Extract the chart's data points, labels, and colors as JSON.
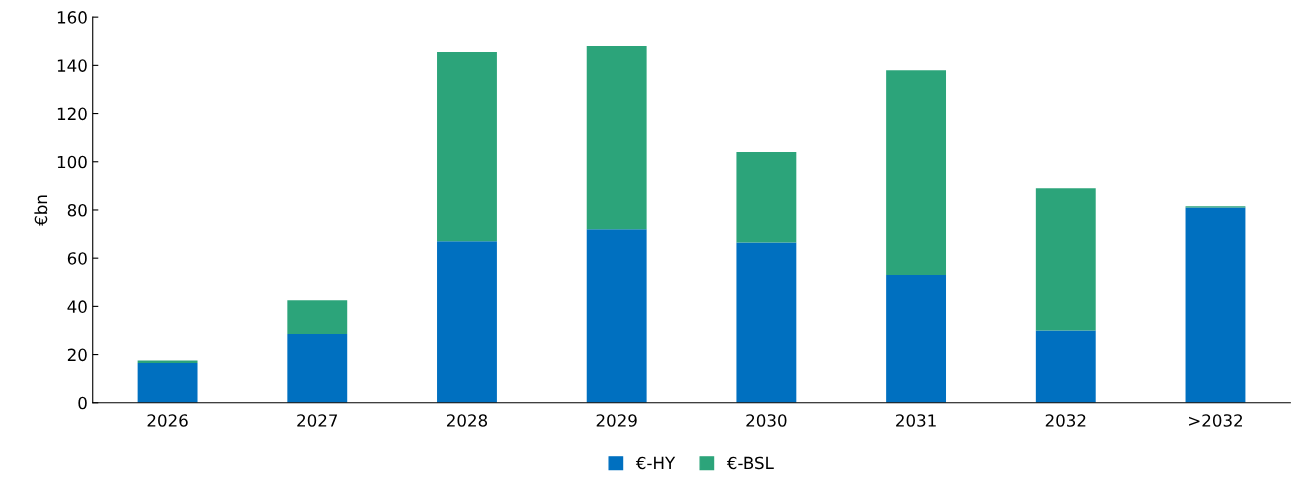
{
  "chart_data": {
    "type": "bar",
    "stacked": true,
    "ylabel": "€bn",
    "categories": [
      "2026",
      "2027",
      "2028",
      "2029",
      "2030",
      "2031",
      "2032",
      ">2032"
    ],
    "series": [
      {
        "name": "€-HY",
        "color": "#0070c0",
        "values": [
          16.5,
          28.5,
          67,
          72,
          66.5,
          53,
          30,
          81
        ]
      },
      {
        "name": "€-BSL",
        "color": "#2ca47a",
        "values": [
          1,
          14,
          78.5,
          76,
          37.5,
          85,
          59,
          0.5
        ]
      }
    ],
    "ylim": [
      0,
      160
    ],
    "yticks": [
      0,
      20,
      40,
      60,
      80,
      100,
      120,
      140,
      160
    ],
    "legend": "bottom"
  }
}
